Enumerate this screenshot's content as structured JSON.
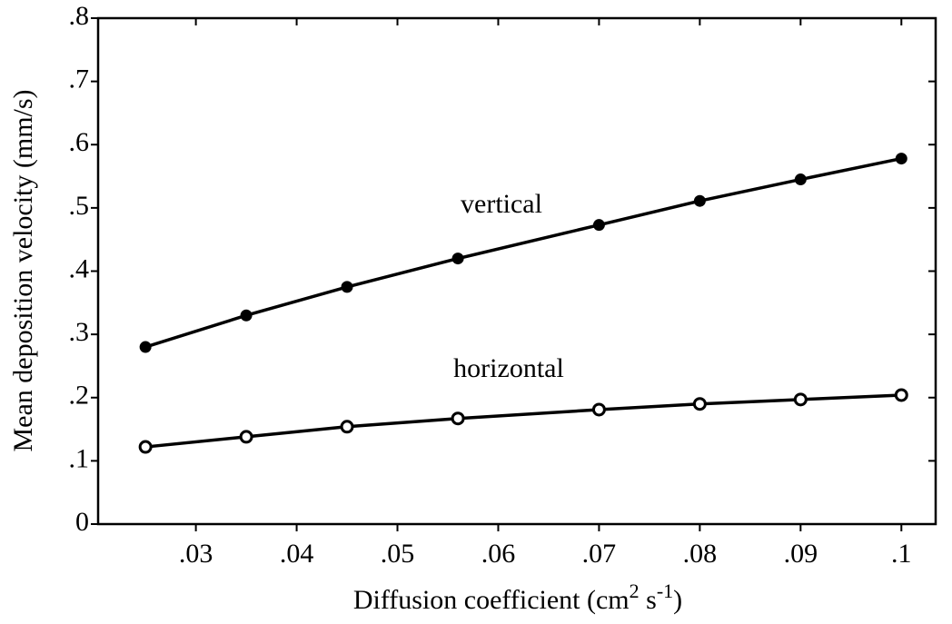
{
  "chart_data": {
    "type": "line",
    "ylabel": "Mean deposition velocity (mm/s)",
    "xlabel_parts": [
      "Diffusion coefficient (cm",
      "2",
      " s",
      "-1",
      ")"
    ],
    "x": [
      0.025,
      0.035,
      0.045,
      0.056,
      0.07,
      0.08,
      0.09,
      0.1
    ],
    "series": [
      {
        "name": "vertical",
        "color": "#000000",
        "marker": "filled",
        "values": [
          0.28,
          0.33,
          0.375,
          0.42,
          0.473,
          0.511,
          0.545,
          0.578
        ]
      },
      {
        "name": "horizontal",
        "color": "#000000",
        "marker": "open",
        "values": [
          0.122,
          0.138,
          0.154,
          0.167,
          0.181,
          0.19,
          0.197,
          0.204
        ]
      }
    ],
    "xlim": [
      0.0203,
      0.1034
    ],
    "xticks": [
      {
        "value": 0.03,
        "label": ".03"
      },
      {
        "value": 0.04,
        "label": ".04"
      },
      {
        "value": 0.05,
        "label": ".05"
      },
      {
        "value": 0.06,
        "label": ".06"
      },
      {
        "value": 0.07,
        "label": ".07"
      },
      {
        "value": 0.08,
        "label": ".08"
      },
      {
        "value": 0.09,
        "label": ".09"
      },
      {
        "value": 0.1,
        "label": ".1"
      }
    ],
    "ylim": [
      0,
      0.8
    ],
    "yticks": [
      0,
      {
        "value": 0.1,
        "label": ".1"
      },
      {
        "value": 0.2,
        "label": ".2"
      },
      {
        "value": 0.3,
        "label": ".3"
      },
      {
        "value": 0.4,
        "label": ".4"
      },
      {
        "value": 0.5,
        "label": ".5"
      },
      {
        "value": 0.6,
        "label": ".6"
      },
      {
        "value": 0.7,
        "label": ".7"
      },
      {
        "value": 0.8,
        "label": ".8"
      }
    ],
    "grid": false
  }
}
